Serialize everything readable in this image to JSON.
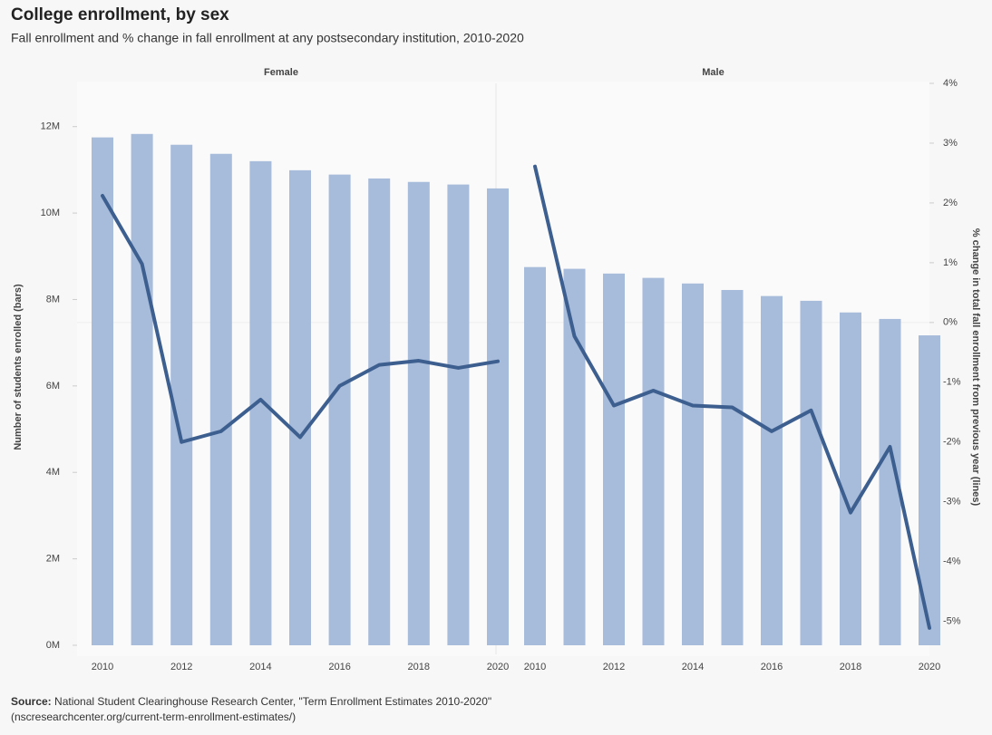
{
  "chart_data": {
    "type": "bar-line",
    "title": "College enrollment, by sex",
    "subtitle": "Fall enrollment and % change in fall enrollment at any postsecondary institution, 2010-2020",
    "y_label": "Number of students enrolled (bars)",
    "y2_label": "% change in total fall enrollment from previous year (lines)",
    "categories": [
      "2010",
      null,
      "2012",
      null,
      "2014",
      null,
      "2016",
      null,
      "2018",
      null,
      "2020"
    ],
    "ylim": [
      0,
      13
    ],
    "yticks": [
      {
        "value": 0,
        "label": "0M"
      },
      {
        "value": 2,
        "label": "2M"
      },
      {
        "value": 4,
        "label": "4M"
      },
      {
        "value": 6,
        "label": "6M"
      },
      {
        "value": 8,
        "label": "8M"
      },
      {
        "value": 10,
        "label": "10M"
      },
      {
        "value": 12,
        "label": "12M"
      }
    ],
    "y2lim": [
      -5.4,
      4
    ],
    "y2ticks": [
      {
        "value": -5,
        "label": "-5%"
      },
      {
        "value": -4,
        "label": "-4%"
      },
      {
        "value": -3,
        "label": "-3%"
      },
      {
        "value": -2,
        "label": "-2%"
      },
      {
        "value": -1,
        "label": "-1%"
      },
      {
        "value": 0,
        "label": "0%"
      },
      {
        "value": 1,
        "label": "1%"
      },
      {
        "value": 2,
        "label": "2%"
      },
      {
        "value": 3,
        "label": "3%"
      },
      {
        "value": 4,
        "label": "4%"
      }
    ],
    "bar_color": "#a7bbda",
    "line_color": "#3d5f90",
    "panels": [
      {
        "title": "Female",
        "values": [
          11.75,
          11.83,
          11.58,
          11.37,
          11.2,
          10.99,
          10.89,
          10.8,
          10.72,
          10.66,
          10.57
        ],
        "line_values": [
          2.12,
          0.98,
          -2.0,
          -1.82,
          -1.29,
          -1.92,
          -1.06,
          -0.71,
          -0.64,
          -0.76,
          -0.65
        ]
      },
      {
        "title": "Male",
        "values": [
          8.75,
          8.71,
          8.6,
          8.5,
          8.37,
          8.22,
          8.08,
          7.97,
          7.7,
          7.55,
          7.17
        ],
        "line_values": [
          2.61,
          -0.23,
          -1.39,
          -1.14,
          -1.39,
          -1.42,
          -1.82,
          -1.47,
          -3.18,
          -2.08,
          -5.11
        ]
      }
    ],
    "source": {
      "label": "Source:",
      "text": "National Student Clearinghouse Research Center, \"Term Enrollment Estimates 2010-2020\"",
      "link": "(nscresearchcenter.org/current-term-enrollment-estimates/)"
    }
  }
}
